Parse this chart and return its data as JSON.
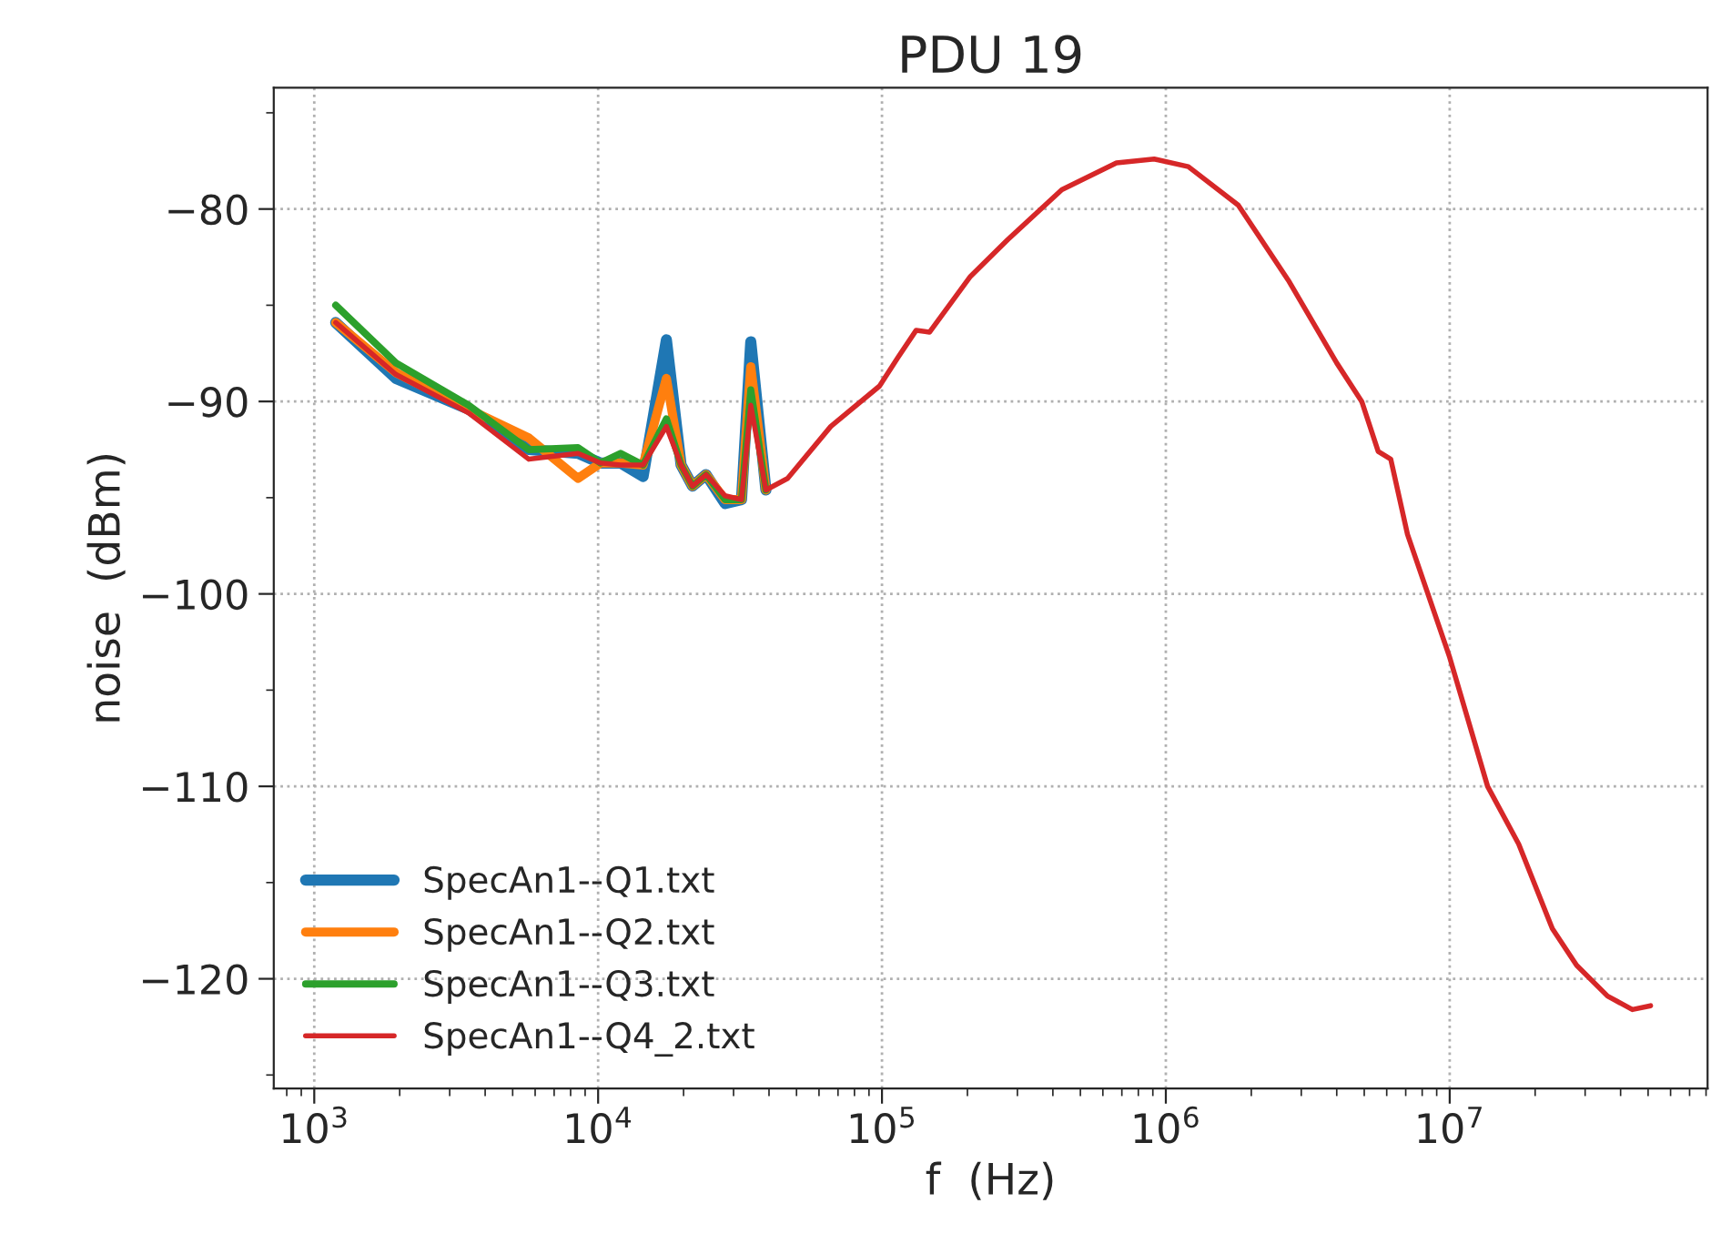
{
  "chart_data": {
    "type": "line",
    "title": "PDU 19",
    "xlabel": "f  (Hz)",
    "ylabel": "noise  (dBm)",
    "log": "x",
    "grid": true,
    "legend": "bottom left",
    "xlim": [
      720,
      81000000
    ],
    "xticks": [
      {
        "value": 1000,
        "label": "10$^{3}$"
      },
      {
        "value": 10000,
        "label": "10$^{4}$"
      },
      {
        "value": 100000,
        "label": "10$^{5}$"
      },
      {
        "value": 1000000,
        "label": "10$^{6}$"
      },
      {
        "value": 10000000,
        "label": "10$^{7}$"
      }
    ],
    "ylim": [
      -125.7,
      -73.7
    ],
    "yticks": [
      {
        "value": -80,
        "label": "−80"
      },
      {
        "value": -90,
        "label": "−90"
      },
      {
        "value": -100,
        "label": "−100"
      },
      {
        "value": -110,
        "label": "−110"
      },
      {
        "value": -120,
        "label": "−120"
      }
    ],
    "x": [
      1190,
      1940,
      3500,
      5700,
      8500,
      10200,
      12000,
      14400,
      17400,
      19600,
      21500,
      24000,
      28000,
      32000,
      34500,
      39000,
      46500,
      66000,
      98000,
      114000,
      132000,
      147000,
      205000,
      277000,
      430000,
      670000,
      910000,
      1200000,
      1800000,
      2700000,
      4000000,
      4900000,
      5600000,
      6200000,
      7100000,
      10000000,
      13600000,
      17500000,
      23000000,
      28000000,
      36000000,
      44000000,
      51000000
    ],
    "series": [
      {
        "name": "SpecAn1--Q1.txt",
        "color": "#1f77b4",
        "values": [
          -85.9,
          -88.8,
          -90.4,
          -92.5,
          -92.7,
          -93.2,
          -93.2,
          -93.9,
          -86.8,
          -93.3,
          -94.4,
          -93.8,
          -95.3,
          -95.1,
          -86.9,
          -94.6,
          null,
          null,
          null,
          null,
          null,
          null,
          null,
          null,
          null,
          null,
          null,
          null,
          null,
          null,
          null,
          null,
          null,
          null,
          null,
          null,
          null,
          null,
          null,
          null,
          null,
          null,
          null
        ]
      },
      {
        "name": "SpecAn1--Q2.txt",
        "color": "#ff7f0e",
        "values": [
          -85.9,
          -88.5,
          -90.4,
          -91.9,
          -94.0,
          -93.2,
          -93.2,
          -93.3,
          -88.8,
          -93.3,
          -94.4,
          -93.8,
          -95.1,
          -95.1,
          -88.2,
          -94.6,
          null,
          null,
          null,
          null,
          null,
          null,
          null,
          null,
          null,
          null,
          null,
          null,
          null,
          null,
          null,
          null,
          null,
          null,
          null,
          null,
          null,
          null,
          null,
          null,
          null,
          null,
          null
        ]
      },
      {
        "name": "SpecAn1--Q3.txt",
        "color": "#2ca02c",
        "values": [
          -85.0,
          -88.0,
          -90.2,
          -92.5,
          -92.4,
          -93.2,
          -92.7,
          -93.3,
          -90.9,
          -93.3,
          -94.4,
          -93.8,
          -95.1,
          -95.1,
          -89.4,
          -94.6,
          null,
          null,
          null,
          null,
          null,
          null,
          null,
          null,
          null,
          null,
          null,
          null,
          null,
          null,
          null,
          null,
          null,
          null,
          null,
          null,
          null,
          null,
          null,
          null,
          null,
          null,
          null
        ]
      },
      {
        "name": "SpecAn1--Q4_2.txt",
        "color": "#d62728",
        "values": [
          -85.9,
          -88.6,
          -90.6,
          -93.0,
          -92.7,
          -93.2,
          -93.3,
          -93.3,
          -91.3,
          -93.3,
          -94.4,
          -93.8,
          -94.9,
          -95.1,
          -90.2,
          -94.6,
          -94.0,
          -91.3,
          -89.2,
          -87.7,
          -86.3,
          -86.4,
          -83.5,
          -81.6,
          -79.0,
          -77.6,
          -77.4,
          -77.8,
          -79.8,
          -83.7,
          -88.0,
          -90.0,
          -92.6,
          -93.0,
          -96.9,
          -103.3,
          -110.0,
          -113.0,
          -117.4,
          -119.3,
          -120.9,
          -121.6,
          -121.4
        ]
      }
    ]
  }
}
